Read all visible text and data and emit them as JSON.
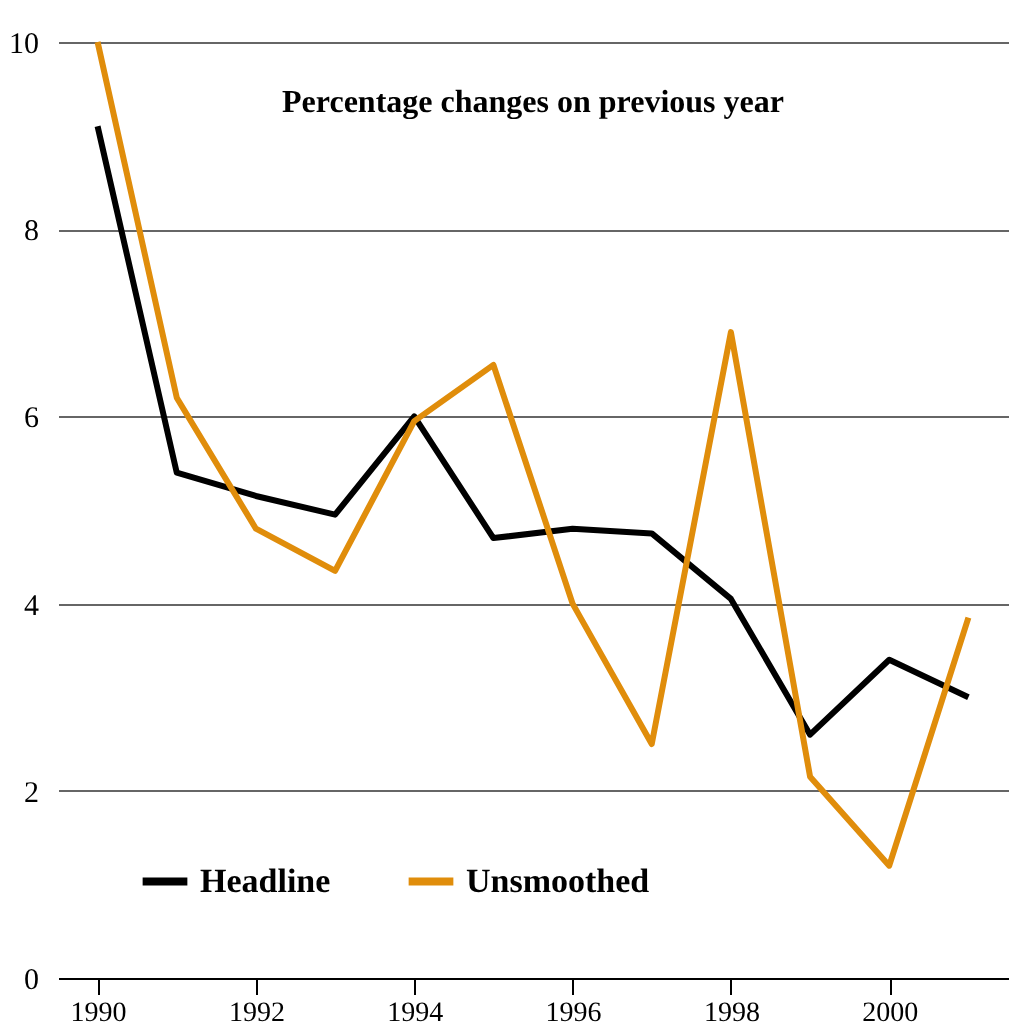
{
  "chart_data": {
    "type": "line",
    "title": "Percentage changes on previous year",
    "x": [
      1990,
      1991,
      1992,
      1993,
      1994,
      1995,
      1996,
      1997,
      1998,
      1999,
      2000,
      2001
    ],
    "series": [
      {
        "name": "Headline",
        "color": "#000000",
        "values": [
          9.1,
          5.4,
          5.15,
          4.95,
          6.0,
          4.7,
          4.8,
          4.75,
          4.05,
          2.6,
          3.4,
          3.0
        ]
      },
      {
        "name": "Unsmoothed",
        "color": "#e08d0b",
        "values": [
          10.0,
          6.2,
          4.8,
          4.35,
          5.95,
          6.55,
          4.0,
          2.5,
          6.9,
          2.15,
          1.2,
          3.85
        ]
      }
    ],
    "xlim": [
      1989.5,
      2001.5
    ],
    "xticks": [
      1990,
      1992,
      1994,
      1996,
      1998,
      2000
    ],
    "ylim": [
      0,
      10
    ],
    "yticks": [
      0,
      2,
      4,
      6,
      8,
      10
    ],
    "grid": "y",
    "legend": "bottom left",
    "marker": "none",
    "line_style": "solid"
  }
}
